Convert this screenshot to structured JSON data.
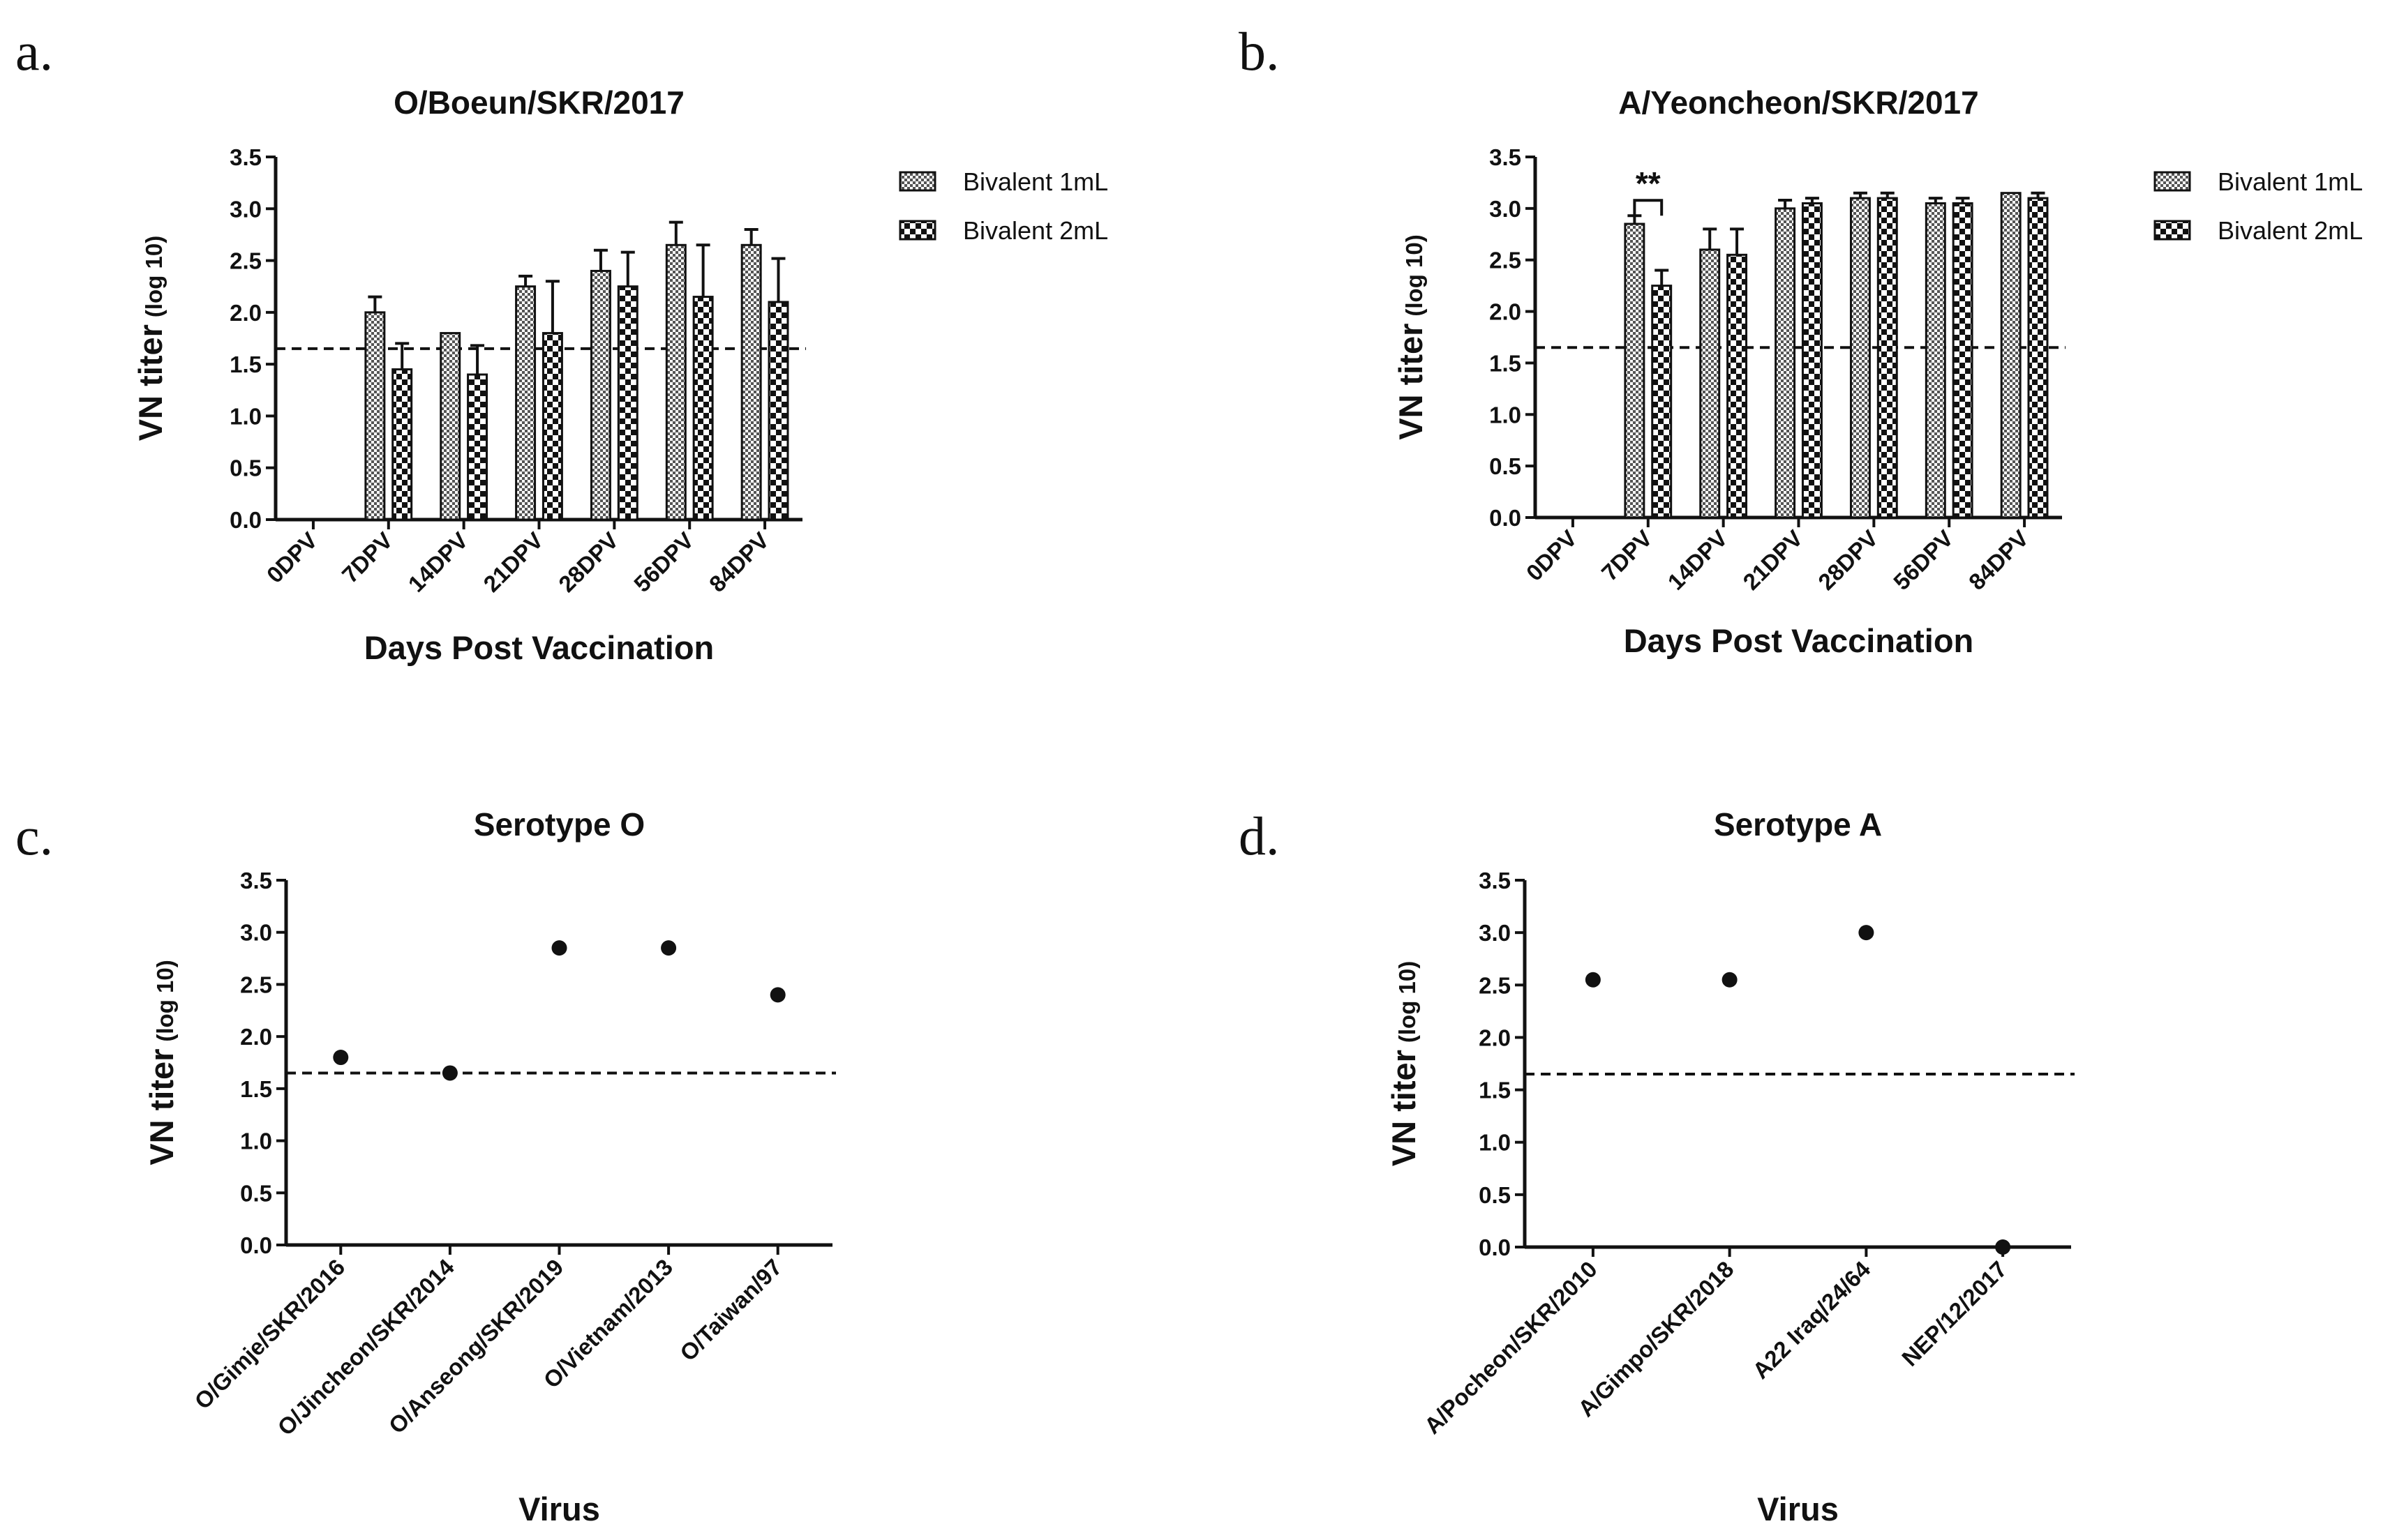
{
  "chart_data": [
    {
      "id": "a",
      "panel_label": "a.",
      "type": "bar",
      "title": "O/Boeun/SKR/2017",
      "xlabel": "Days Post Vaccination",
      "ylabel_main": "VN titer",
      "ylabel_sub": "(log 10)",
      "ylim": [
        0,
        3.5
      ],
      "yticks": [
        "0.0",
        "0.5",
        "1.0",
        "1.5",
        "2.0",
        "2.5",
        "3.0",
        "3.5"
      ],
      "threshold": 1.65,
      "categories": [
        "0DPV",
        "7DPV",
        "14DPV",
        "21DPV",
        "28DPV",
        "56DPV",
        "84DPV"
      ],
      "series": [
        {
          "name": "Bivalent 1mL",
          "values": [
            0,
            2.0,
            1.8,
            2.25,
            2.4,
            2.65,
            2.65
          ],
          "errors": [
            0,
            0.15,
            0,
            0.1,
            0.2,
            0.22,
            0.15
          ]
        },
        {
          "name": "Bivalent 2mL",
          "values": [
            0,
            1.45,
            1.4,
            1.8,
            2.25,
            2.15,
            2.1
          ],
          "errors": [
            0,
            0.25,
            0.28,
            0.5,
            0.33,
            0.5,
            0.42
          ]
        }
      ],
      "legend": [
        "Bivalent 1mL",
        "Bivalent 2mL"
      ],
      "legend_position": "top-right"
    },
    {
      "id": "b",
      "panel_label": "b.",
      "type": "bar",
      "title": "A/Yeoncheon/SKR/2017",
      "xlabel": "Days Post Vaccination",
      "ylabel_main": "VN titer",
      "ylabel_sub": "(log 10)",
      "ylim": [
        0,
        3.5
      ],
      "yticks": [
        "0.0",
        "0.5",
        "1.0",
        "1.5",
        "2.0",
        "2.5",
        "3.0",
        "3.5"
      ],
      "threshold": 1.65,
      "categories": [
        "0DPV",
        "7DPV",
        "14DPV",
        "21DPV",
        "28DPV",
        "56DPV",
        "84DPV"
      ],
      "series": [
        {
          "name": "Bivalent 1mL",
          "values": [
            0,
            2.85,
            2.6,
            3.0,
            3.1,
            3.05,
            3.15
          ],
          "errors": [
            0,
            0.08,
            0.2,
            0.08,
            0.05,
            0.05,
            0
          ]
        },
        {
          "name": "Bivalent 2mL",
          "values": [
            0,
            2.25,
            2.55,
            3.05,
            3.1,
            3.05,
            3.1
          ],
          "errors": [
            0,
            0.15,
            0.25,
            0.05,
            0.05,
            0.05,
            0.05
          ]
        }
      ],
      "annotation": {
        "text": "**",
        "category": "7DPV"
      },
      "legend": [
        "Bivalent 1mL",
        "Bivalent 2mL"
      ],
      "legend_position": "top-right"
    },
    {
      "id": "c",
      "panel_label": "c.",
      "type": "scatter",
      "title": "Serotype O",
      "xlabel": "Virus",
      "ylabel_main": "VN titer",
      "ylabel_sub": "(log 10)",
      "ylim": [
        0,
        3.5
      ],
      "yticks": [
        "0.0",
        "0.5",
        "1.0",
        "1.5",
        "2.0",
        "2.5",
        "3.0",
        "3.5"
      ],
      "threshold": 1.65,
      "categories": [
        "O/Gimje/SKR/2016",
        "O/Jincheon/SKR/2014",
        "O/Anseong/SKR/2019",
        "O/Vietnam/2013",
        "O/Taiwan/97"
      ],
      "values": [
        1.8,
        1.65,
        2.85,
        2.85,
        2.4
      ]
    },
    {
      "id": "d",
      "panel_label": "d.",
      "type": "scatter",
      "title": "Serotype A",
      "xlabel": "Virus",
      "ylabel_main": "VN titer",
      "ylabel_sub": "(log 10)",
      "ylim": [
        0,
        3.5
      ],
      "yticks": [
        "0.0",
        "0.5",
        "1.0",
        "1.5",
        "2.0",
        "2.5",
        "3.0",
        "3.5"
      ],
      "threshold": 1.65,
      "categories": [
        "A/Pocheon/SKR/2010",
        "A/Gimpo/SKR/2018",
        "A22 Iraq/24/64",
        "NEP/12/2017"
      ],
      "values": [
        2.55,
        2.55,
        3.0,
        0
      ]
    }
  ]
}
